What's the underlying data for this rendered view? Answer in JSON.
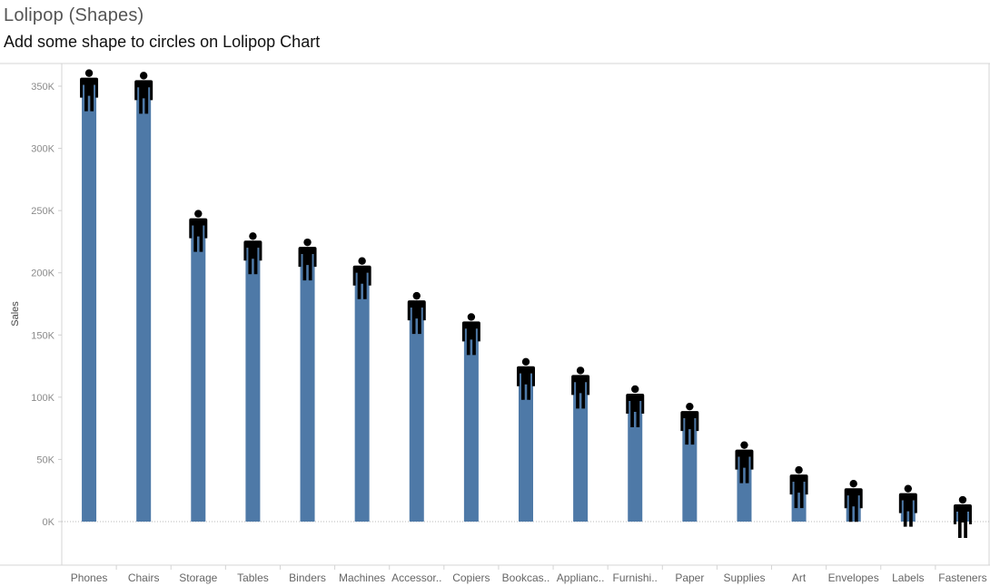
{
  "header": {
    "title": "Lolipop (Shapes)",
    "subtitle": "Add some shape to circles on Lolipop Chart"
  },
  "chart_data": {
    "type": "bar",
    "title": "Lolipop (Shapes)",
    "subtitle": "Add some shape to circles on Lolipop Chart",
    "xlabel": "",
    "ylabel": "Sales",
    "ylim": [
      -35000,
      360000
    ],
    "yticks": [
      0,
      50000,
      100000,
      150000,
      200000,
      250000,
      300000,
      350000
    ],
    "ytick_labels": [
      "0K",
      "50K",
      "100K",
      "150K",
      "200K",
      "250K",
      "300K",
      "350K"
    ],
    "categories": [
      "Phones",
      "Chairs",
      "Storage",
      "Tables",
      "Binders",
      "Machines",
      "Accessor..",
      "Copiers",
      "Bookcas..",
      "Applianc..",
      "Furnishi..",
      "Paper",
      "Supplies",
      "Art",
      "Envelopes",
      "Labels",
      "Fasteners"
    ],
    "series": [
      {
        "values": [
          351000,
          349000,
          238000,
          220000,
          215000,
          200000,
          172000,
          155000,
          119000,
          112000,
          97000,
          83000,
          52000,
          32000,
          21000,
          17000,
          8000
        ],
        "color": "#4e79a7",
        "marker": "person-icon",
        "marker_color": "#000000"
      }
    ],
    "grid": false,
    "zero_line": "dotted"
  }
}
